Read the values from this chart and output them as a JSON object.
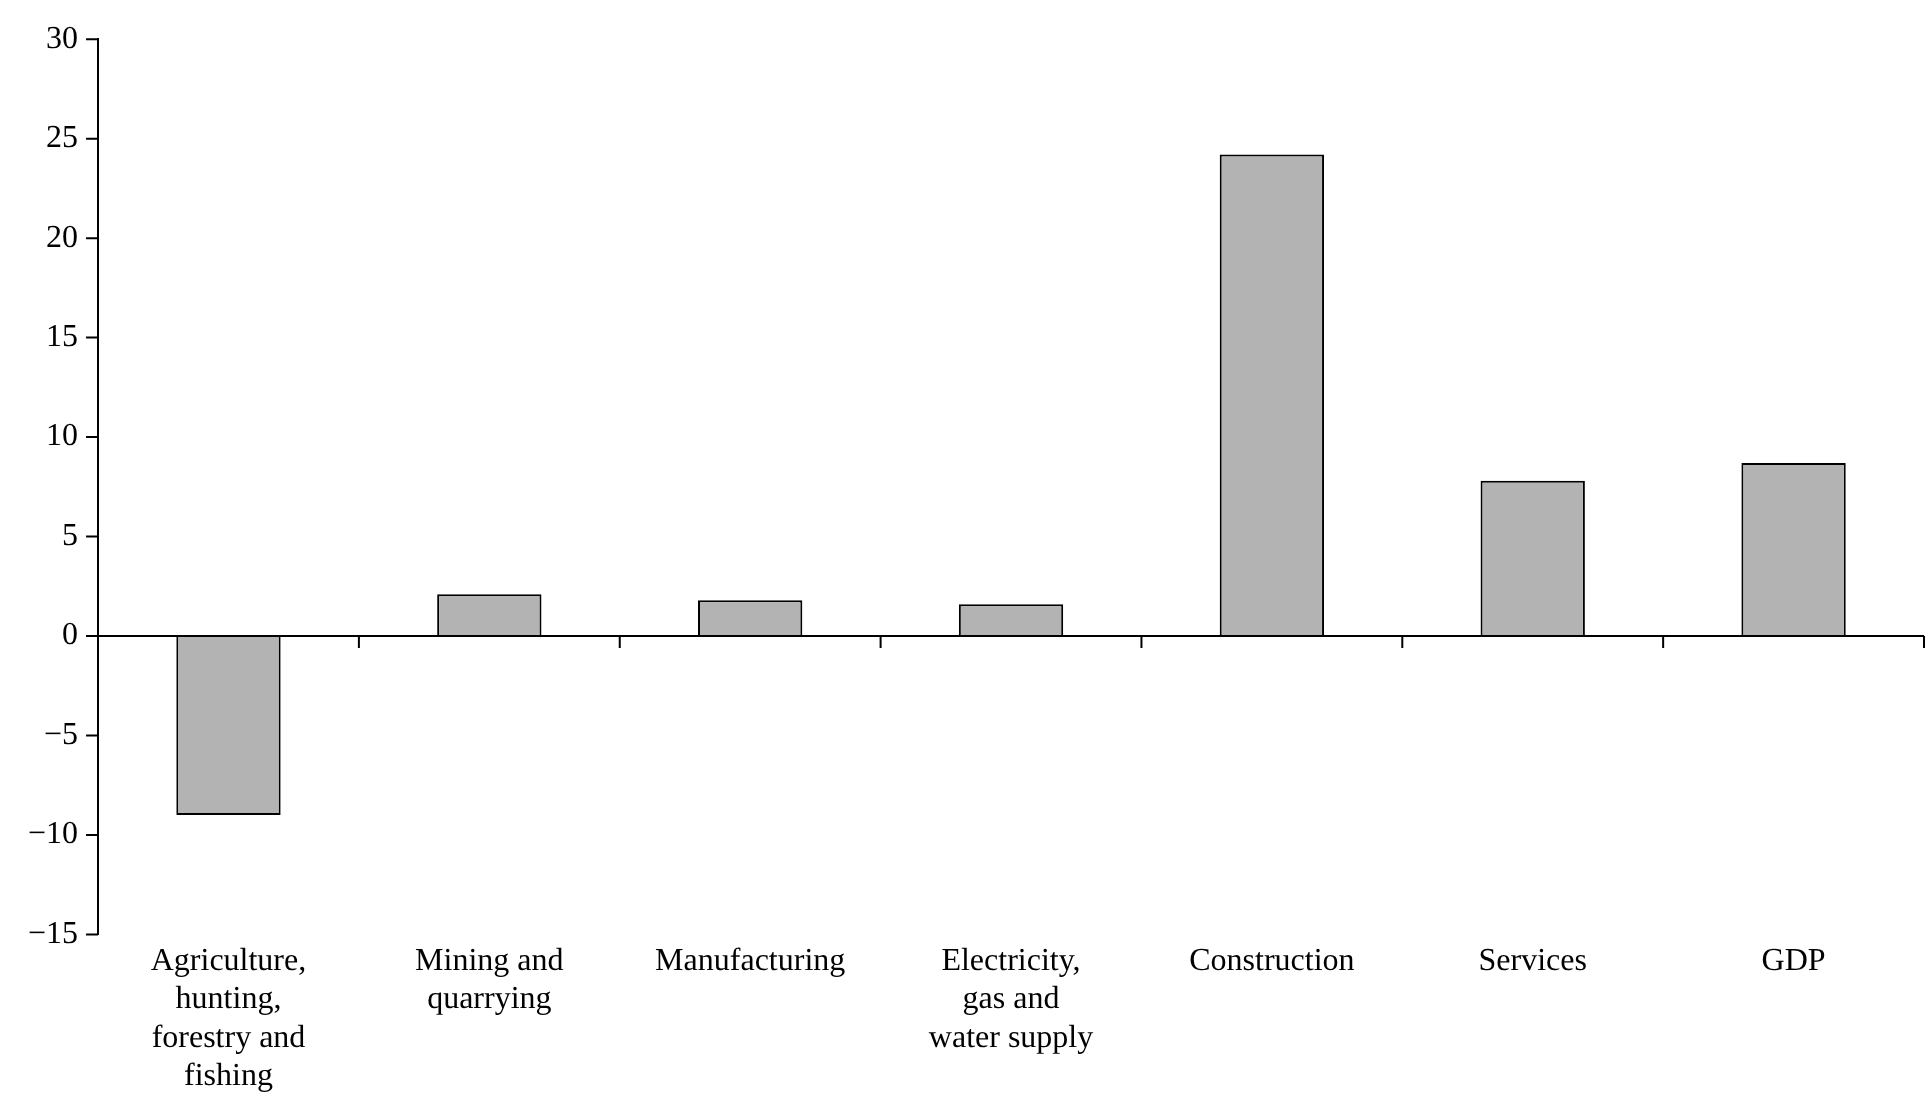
{
  "chart_data": {
    "type": "bar",
    "categories": [
      "Agriculture, hunting, forestry and fishing",
      "Mining and quarrying",
      "Manufacturing",
      "Electricity, gas and water supply",
      "Construction",
      "Services",
      "GDP"
    ],
    "values": [
      -9.0,
      2.1,
      1.8,
      1.6,
      24.2,
      7.8,
      8.7
    ],
    "color": "#b3b3b3",
    "ylim": [
      -15,
      30
    ],
    "yticks": [
      -15,
      -10,
      -5,
      0,
      5,
      10,
      15,
      20,
      25,
      30
    ],
    "legend": false
  }
}
